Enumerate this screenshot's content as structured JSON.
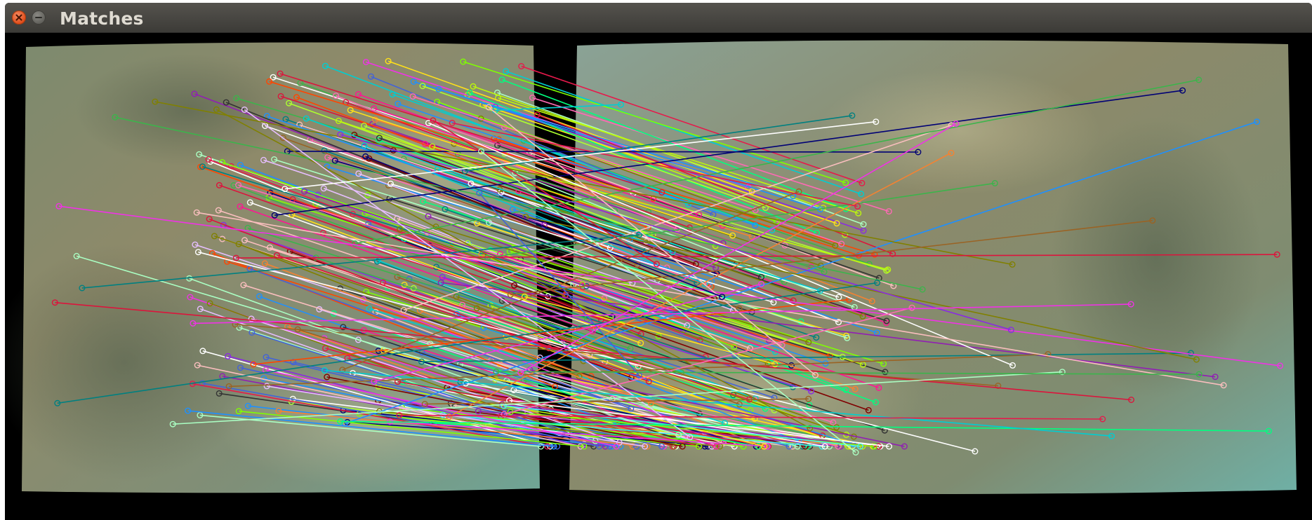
{
  "window": {
    "title": "Matches",
    "controls": [
      {
        "name": "close-window-button",
        "icon": "close-icon"
      },
      {
        "name": "minimize-window-button",
        "icon": "minimize-icon"
      }
    ]
  },
  "view": {
    "description_visible": false,
    "left_image": {
      "name": "left-underwater-image"
    },
    "right_image": {
      "name": "right-underwater-image"
    },
    "match_line_colors": [
      "#e6194b",
      "#3cb44b",
      "#ffe119",
      "#4363d8",
      "#f58231",
      "#911eb4",
      "#46f0f0",
      "#f032e6",
      "#bcf60c",
      "#fabebe",
      "#008080",
      "#e6beff",
      "#9a6324",
      "#800000",
      "#aaffc3",
      "#808000",
      "#000075",
      "#ff69b4",
      "#00ff7f",
      "#1e90ff",
      "#ff4500",
      "#7fff00",
      "#dc143c",
      "#00ced1",
      "#ff1493",
      "#adff2f",
      "#8a2be2",
      "#ffffff",
      "#333333"
    ]
  }
}
